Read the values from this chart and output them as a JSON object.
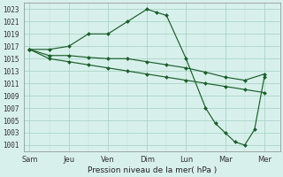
{
  "background_color": "#d8f0ec",
  "grid_color_major": "#9fcfbe",
  "grid_color_minor": "#bfdfcf",
  "line_color": "#1a5e2a",
  "xlabel": "Pression niveau de la mer( hPa )",
  "x_tick_positions": [
    0,
    1,
    2,
    3,
    4,
    5,
    6
  ],
  "x_labels": [
    "Sam",
    "Jeu",
    "Ven",
    "Dim",
    "Lun",
    "Mar",
    "Mer"
  ],
  "ylim": [
    1000,
    1024
  ],
  "ytick_start": 1001,
  "ytick_end": 1023,
  "ytick_step": 2,
  "series": [
    {
      "x": [
        0.0,
        0.5,
        1.0,
        1.5,
        2.0,
        2.5,
        3.0,
        3.25,
        3.5,
        4.0,
        4.5,
        4.75,
        5.0,
        5.25,
        5.5,
        5.75,
        6.0
      ],
      "y": [
        1016.5,
        1016.5,
        1017.0,
        1019.0,
        1019.0,
        1021.0,
        1023.0,
        1022.5,
        1022.0,
        1015.0,
        1007.0,
        1004.5,
        1003.0,
        1001.5,
        1001.0,
        1003.5,
        1012.0
      ]
    },
    {
      "x": [
        0.0,
        0.5,
        1.0,
        1.5,
        2.0,
        2.5,
        3.0,
        3.5,
        4.0,
        4.5,
        5.0,
        5.5,
        6.0
      ],
      "y": [
        1016.5,
        1015.5,
        1015.5,
        1015.2,
        1015.0,
        1015.0,
        1014.5,
        1014.0,
        1013.5,
        1012.8,
        1012.0,
        1011.5,
        1012.5
      ]
    },
    {
      "x": [
        0.0,
        0.5,
        1.0,
        1.5,
        2.0,
        2.5,
        3.0,
        3.5,
        4.0,
        4.5,
        5.0,
        5.5,
        6.0
      ],
      "y": [
        1016.5,
        1015.0,
        1014.5,
        1014.0,
        1013.5,
        1013.0,
        1012.5,
        1012.0,
        1011.5,
        1011.0,
        1010.5,
        1010.0,
        1009.5
      ]
    }
  ],
  "figsize": [
    3.2,
    2.0
  ],
  "dpi": 100
}
